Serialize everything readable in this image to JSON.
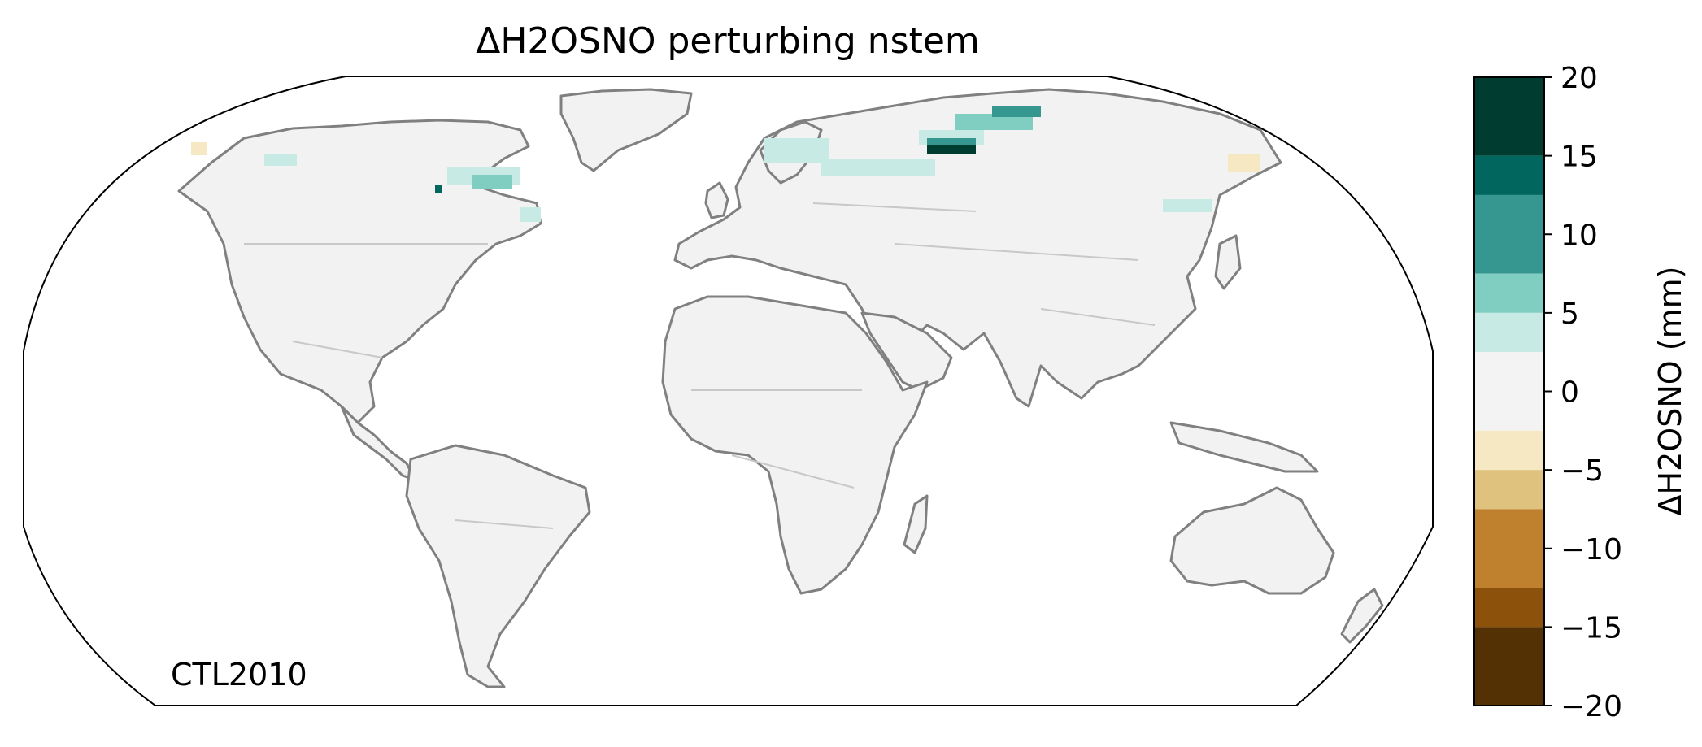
{
  "figure": {
    "title": "ΔH2OSNO perturbing nstem",
    "annotation": "CTL2010"
  },
  "colorbar": {
    "label": "ΔH2OSNO (mm)",
    "ticks": [
      "20",
      "15",
      "10",
      "5",
      "0",
      "−5",
      "−10",
      "−15",
      "−20"
    ],
    "bins": [
      {
        "from": 15,
        "to": 20,
        "color": "#003c30"
      },
      {
        "from": 12.5,
        "to": 15,
        "color": "#01665e"
      },
      {
        "from": 7.5,
        "to": 12.5,
        "color": "#35978f"
      },
      {
        "from": 5,
        "to": 7.5,
        "color": "#80cdc1"
      },
      {
        "from": 2.5,
        "to": 5,
        "color": "#c7eae5"
      },
      {
        "from": -2.5,
        "to": 2.5,
        "color": "#f3f3f3"
      },
      {
        "from": -5,
        "to": -2.5,
        "color": "#f6e8c3"
      },
      {
        "from": -7.5,
        "to": -5,
        "color": "#dfc27d"
      },
      {
        "from": -12.5,
        "to": -7.5,
        "color": "#bf812d"
      },
      {
        "from": -15,
        "to": -12.5,
        "color": "#8c510a"
      },
      {
        "from": -20,
        "to": -15,
        "color": "#543005"
      }
    ]
  },
  "colors": {
    "land_fill": "#f2f2f2",
    "coastline": "#808080",
    "borders": "#c8c8c8",
    "frame": "#000000"
  }
}
